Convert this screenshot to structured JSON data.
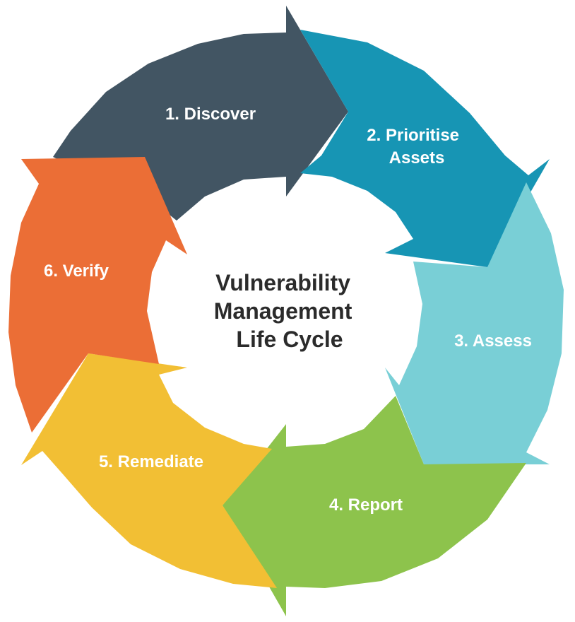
{
  "diagram": {
    "title_lines": [
      "Vulnerability",
      "Management",
      "Life Cycle"
    ],
    "steps": [
      {
        "label_lines": [
          "1. Discover"
        ],
        "color": "#425563"
      },
      {
        "label_lines": [
          "2. Prioritise",
          "Assets"
        ],
        "color": "#1795B4"
      },
      {
        "label_lines": [
          "3. Assess"
        ],
        "color": "#79CFD6"
      },
      {
        "label_lines": [
          "4. Report"
        ],
        "color": "#8DC34C"
      },
      {
        "label_lines": [
          "5. Remediate"
        ],
        "color": "#F2BF34"
      },
      {
        "label_lines": [
          "6. Verify"
        ],
        "color": "#EB6E36"
      }
    ]
  }
}
